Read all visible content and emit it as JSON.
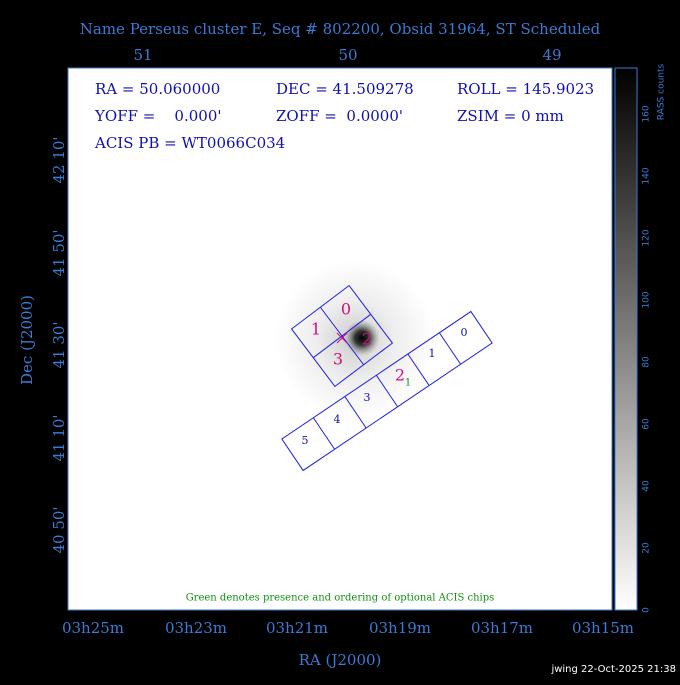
{
  "title": "Name Perseus cluster E, Seq # 802200, Obsid 31964, ST Scheduled",
  "top_axis_labels": [
    "51",
    "50",
    "49"
  ],
  "info": [
    "RA = 50.060000",
    "DEC = 41.509278",
    "ROLL = 145.9023",
    "YOFF =    0.000'",
    "ZOFF =  0.0000'",
    "ZSIM = 0 mm",
    "ACIS PB = WT0066C034"
  ],
  "y_axis_title": "Dec (J2000)",
  "y_tick_labels": [
    "42 10'",
    "41 50'",
    "41 30'",
    "41 10'",
    "40 50'"
  ],
  "x_axis_title": "RA (J2000)",
  "x_tick_labels": [
    "03h25m",
    "03h23m",
    "03h21m",
    "03h19m",
    "03h17m",
    "03h15m"
  ],
  "colorbar_title": "RASS counts",
  "colorbar_tick_labels": [
    "0",
    "20",
    "40",
    "60",
    "80",
    "100",
    "120",
    "140",
    "160"
  ],
  "acis_i_chips": [
    "0",
    "1",
    "2",
    "3"
  ],
  "acis_s_chips": [
    "0",
    "1",
    "2",
    "3",
    "4",
    "5"
  ],
  "optional_marker": "1",
  "note": "Green denotes presence and ordering of optional ACIS chips",
  "footer": "jwing 22-Oct-2025 21:38"
}
